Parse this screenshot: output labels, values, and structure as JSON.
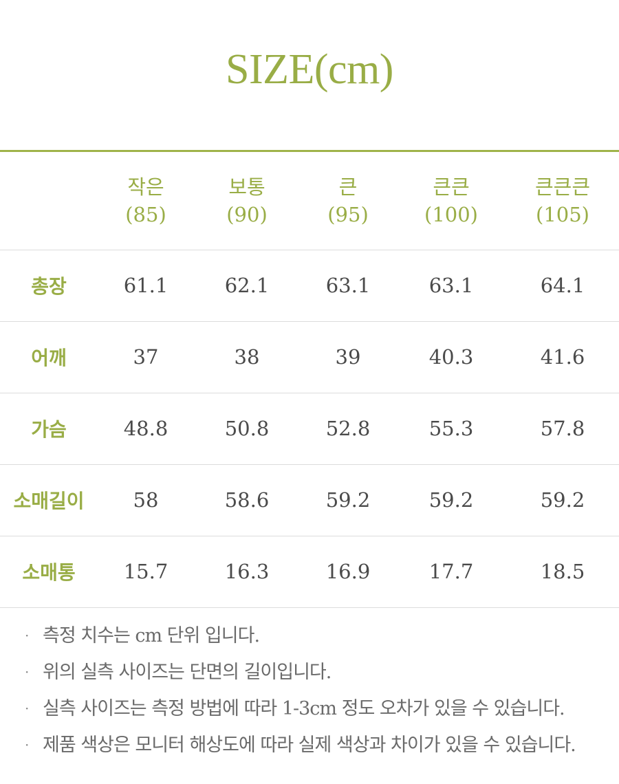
{
  "title": "SIZE(cm)",
  "table": {
    "columns": [
      {
        "name": "작은",
        "size": "(85)"
      },
      {
        "name": "보통",
        "size": "(90)"
      },
      {
        "name": "큰",
        "size": "(95)"
      },
      {
        "name": "큰큰",
        "size": "(100)"
      },
      {
        "name": "큰큰큰",
        "size": "(105)"
      }
    ],
    "rows": [
      {
        "label": "총장",
        "values": [
          "61.1",
          "62.1",
          "63.1",
          "63.1",
          "64.1"
        ]
      },
      {
        "label": "어깨",
        "values": [
          "37",
          "38",
          "39",
          "40.3",
          "41.6"
        ]
      },
      {
        "label": "가슴",
        "values": [
          "48.8",
          "50.8",
          "52.8",
          "55.3",
          "57.8"
        ]
      },
      {
        "label": "소매길이",
        "values": [
          "58",
          "58.6",
          "59.2",
          "59.2",
          "59.2"
        ]
      },
      {
        "label": "소매통",
        "values": [
          "15.7",
          "16.3",
          "16.9",
          "17.7",
          "18.5"
        ]
      }
    ]
  },
  "notes": {
    "bullet": "·",
    "items": [
      "측정 치수는 cm 단위 입니다.",
      "위의 실측 사이즈는 단면의 길이입니다.",
      "실측 사이즈는 측정 방법에 따라 1-3cm 정도 오차가 있을 수 있습니다.",
      "제품 색상은 모니터 해상도에 따라 실제 색상과 차이가 있을 수 있습니다."
    ]
  },
  "colors": {
    "accent": "#99ad46",
    "text": "#4a4a4a",
    "divider": "#dcdcdc"
  }
}
